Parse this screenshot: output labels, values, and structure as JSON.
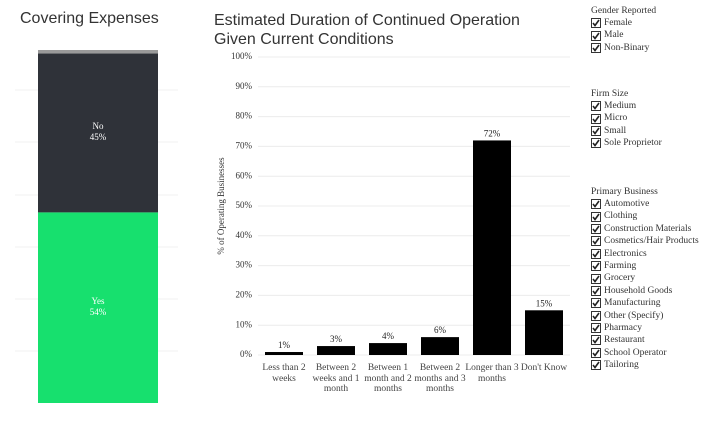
{
  "chart_data": [
    {
      "type": "stacked_bar",
      "title": "Covering Expenses",
      "categories": [
        null
      ],
      "series": [
        {
          "name": "Yes",
          "color": "#17e06e",
          "values": [
            54
          ],
          "value_labels": [
            "54%"
          ]
        },
        {
          "name": "No",
          "color": "#2f3239",
          "values": [
            45
          ],
          "value_labels": [
            "45%"
          ]
        },
        {
          "name": null,
          "color": "#9a9a9a",
          "values": [
            1
          ]
        }
      ],
      "ylim": [
        0,
        100
      ]
    },
    {
      "type": "bar",
      "title": "Estimated Duration of Continued Operation Given Current Conditions",
      "ylabel": "% of Operating Businesses",
      "categories": [
        "Less than 2 weeks",
        "Between 2 weeks and 1 month",
        "Between 1 month and 2 months",
        "Between 2 months and 3 months",
        "Longer than 3 months",
        "Don't Know"
      ],
      "values": [
        1,
        3,
        4,
        6,
        72,
        15
      ],
      "value_labels": [
        "1%",
        "3%",
        "4%",
        "6%",
        "72%",
        "15%"
      ],
      "color": "#000000",
      "ylim": [
        0,
        100
      ],
      "yticks": [
        {
          "value": 0,
          "label": "0%"
        },
        {
          "value": 10,
          "label": "10%"
        },
        {
          "value": 20,
          "label": "20%"
        },
        {
          "value": 30,
          "label": "30%"
        },
        {
          "value": 40,
          "label": "40%"
        },
        {
          "value": 50,
          "label": "50%"
        },
        {
          "value": 60,
          "label": "60%"
        },
        {
          "value": 70,
          "label": "70%"
        },
        {
          "value": 80,
          "label": "80%"
        },
        {
          "value": 90,
          "label": "90%"
        },
        {
          "value": 100,
          "label": "100%"
        }
      ],
      "grid": true
    }
  ],
  "filters": [
    {
      "title": "Gender Reported",
      "options": [
        "Female",
        "Male",
        "Non-Binary"
      ]
    },
    {
      "title": "Firm Size",
      "options": [
        "Medium",
        "Micro",
        "Small",
        "Sole Proprietor"
      ]
    },
    {
      "title": "Primary Business",
      "options": [
        "Automotive",
        "Clothing",
        "Construction Materials",
        "Cosmetics/Hair Products",
        "Electronics",
        "Farming",
        "Grocery",
        "Household Goods",
        "Manufacturing",
        "Other (Specify)",
        "Pharmacy",
        "Restaurant",
        "School Operator",
        "Tailoring"
      ]
    }
  ]
}
